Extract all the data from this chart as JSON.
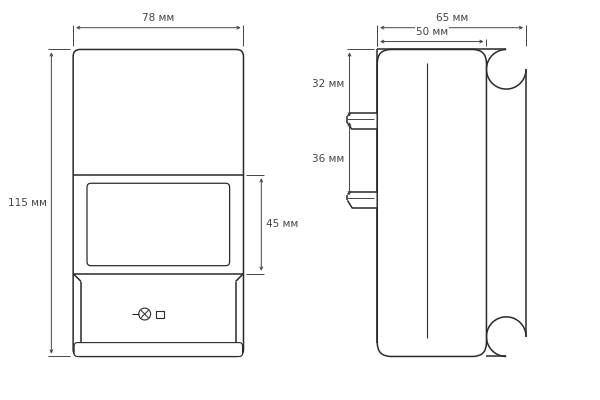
{
  "bg_color": "#ffffff",
  "line_color": "#2a2a2a",
  "dim_color": "#444444",
  "lw": 1.1,
  "dim_lw": 0.7,
  "dim_font_size": 7.5,
  "annotations": {
    "width_78": "78 мм",
    "height_115": "115 мм",
    "height_45": "45 мм",
    "width_65": "65 мм",
    "width_50": "50 мм",
    "height_32": "32 мм",
    "height_36": "36 мм"
  }
}
